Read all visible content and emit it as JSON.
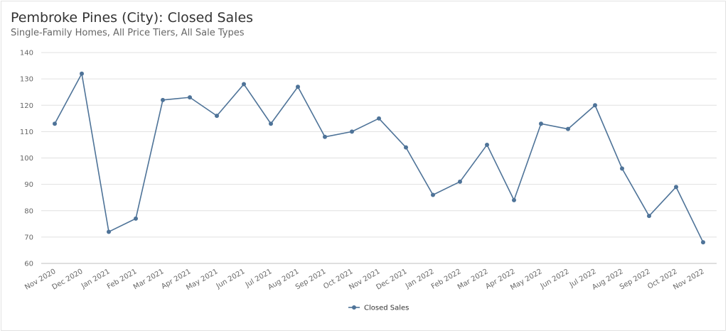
{
  "chart_data": {
    "type": "line",
    "title": "Pembroke Pines (City): Closed Sales",
    "subtitle": "Single-Family Homes, All Price Tiers, All Sale Types",
    "xlabel": "",
    "ylabel": "",
    "ylim": [
      60,
      140
    ],
    "yticks": [
      60,
      70,
      80,
      90,
      100,
      110,
      120,
      130,
      140
    ],
    "grid": true,
    "legend_position": "bottom-center",
    "categories": [
      "Nov 2020",
      "Dec 2020",
      "Jan 2021",
      "Feb 2021",
      "Mar 2021",
      "Apr 2021",
      "May 2021",
      "Jun 2021",
      "Jul 2021",
      "Aug 2021",
      "Sep 2021",
      "Oct 2021",
      "Nov 2021",
      "Dec 2021",
      "Jan 2022",
      "Feb 2022",
      "Mar 2022",
      "Apr 2022",
      "May 2022",
      "Jun 2022",
      "Jul 2022",
      "Aug 2022",
      "Sep 2022",
      "Oct 2022",
      "Nov 2022"
    ],
    "series": [
      {
        "name": "Closed Sales",
        "color": "#4e7398",
        "values": [
          113,
          132,
          72,
          77,
          122,
          123,
          116,
          128,
          113,
          127,
          108,
          110,
          115,
          104,
          86,
          91,
          105,
          84,
          113,
          111,
          120,
          96,
          78,
          89,
          68
        ]
      }
    ]
  }
}
